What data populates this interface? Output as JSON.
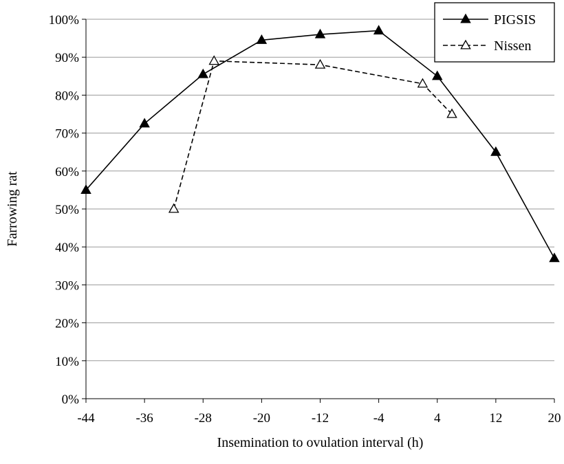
{
  "chart_data": {
    "type": "line",
    "title": "",
    "xlabel": "Insemination to ovulation interval (h)",
    "ylabel": "Farrowing rat",
    "x_ticks": [
      -44,
      -36,
      -28,
      -20,
      -12,
      -4,
      4,
      12,
      20
    ],
    "x_tick_labels": [
      "-44",
      "-36",
      "-28",
      "-20",
      "-12",
      "-4",
      "4",
      "12",
      "20"
    ],
    "xlim": [
      -44,
      20
    ],
    "y_ticks": [
      0,
      10,
      20,
      30,
      40,
      50,
      60,
      70,
      80,
      90,
      100
    ],
    "y_tick_labels": [
      "0%",
      "10%",
      "20%",
      "30%",
      "40%",
      "50%",
      "60%",
      "70%",
      "80%",
      "90%",
      "100%"
    ],
    "ylim": [
      0,
      100
    ],
    "grid": "horizontal",
    "legend_position": "top-right",
    "series": [
      {
        "name": "PIGSIS",
        "line_style": "solid",
        "marker": "filled-triangle",
        "color": "#000000",
        "points": [
          {
            "x": -44,
            "y": 55
          },
          {
            "x": -36,
            "y": 72.5
          },
          {
            "x": -28,
            "y": 85.5
          },
          {
            "x": -20,
            "y": 94.5
          },
          {
            "x": -12,
            "y": 96
          },
          {
            "x": -4,
            "y": 97
          },
          {
            "x": 4,
            "y": 85
          },
          {
            "x": 12,
            "y": 65
          },
          {
            "x": 20,
            "y": 37
          }
        ]
      },
      {
        "name": "Nissen",
        "line_style": "dashed",
        "marker": "open-triangle",
        "color": "#000000",
        "points": [
          {
            "x": -32,
            "y": 50
          },
          {
            "x": -26.5,
            "y": 89
          },
          {
            "x": -12,
            "y": 88
          },
          {
            "x": 2,
            "y": 83
          },
          {
            "x": 6,
            "y": 75
          }
        ]
      }
    ]
  }
}
